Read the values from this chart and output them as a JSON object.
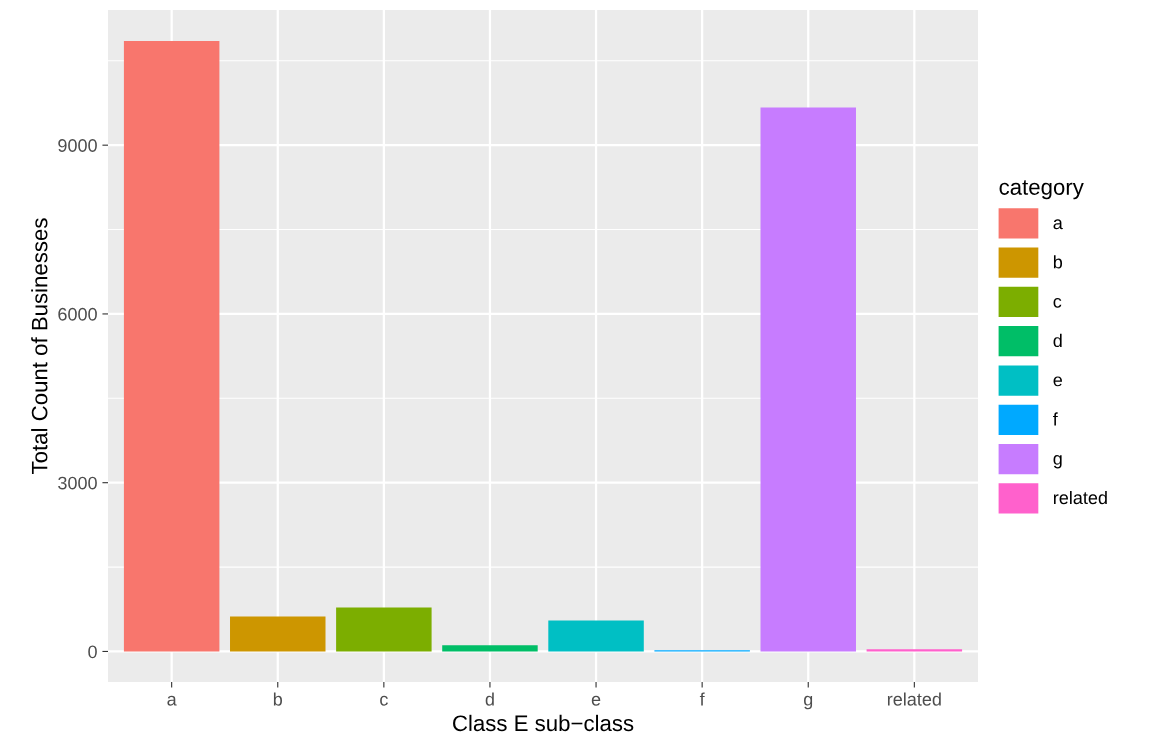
{
  "chart_data": {
    "type": "bar",
    "xlabel": "Class E sub−class",
    "ylabel": "Total Count of Businesses",
    "legend_title": "category",
    "categories": [
      "a",
      "b",
      "c",
      "d",
      "e",
      "f",
      "g",
      "related"
    ],
    "series": [
      {
        "name": "a",
        "color": "#f8766d",
        "values": [
          10850,
          null,
          null,
          null,
          null,
          null,
          null,
          null
        ]
      },
      {
        "name": "b",
        "color": "#cd9600",
        "values": [
          null,
          620,
          null,
          null,
          null,
          null,
          null,
          null
        ]
      },
      {
        "name": "c",
        "color": "#7cae00",
        "values": [
          null,
          null,
          780,
          null,
          null,
          null,
          null,
          null
        ]
      },
      {
        "name": "d",
        "color": "#00be67",
        "values": [
          null,
          null,
          null,
          110,
          null,
          null,
          null,
          null
        ]
      },
      {
        "name": "e",
        "color": "#00bfc4",
        "values": [
          null,
          null,
          null,
          null,
          550,
          null,
          null,
          null
        ]
      },
      {
        "name": "f",
        "color": "#00a9ff",
        "values": [
          null,
          null,
          null,
          null,
          null,
          20,
          null,
          null
        ]
      },
      {
        "name": "g",
        "color": "#c77cff",
        "values": [
          null,
          null,
          null,
          null,
          null,
          null,
          9670,
          null
        ]
      },
      {
        "name": "related",
        "color": "#ff61cc",
        "values": [
          null,
          null,
          null,
          null,
          null,
          null,
          null,
          40
        ]
      }
    ],
    "ylim": [
      -543,
      11403
    ],
    "yticks": [
      0,
      3000,
      6000,
      9000
    ],
    "grid": true,
    "legend": "right"
  }
}
